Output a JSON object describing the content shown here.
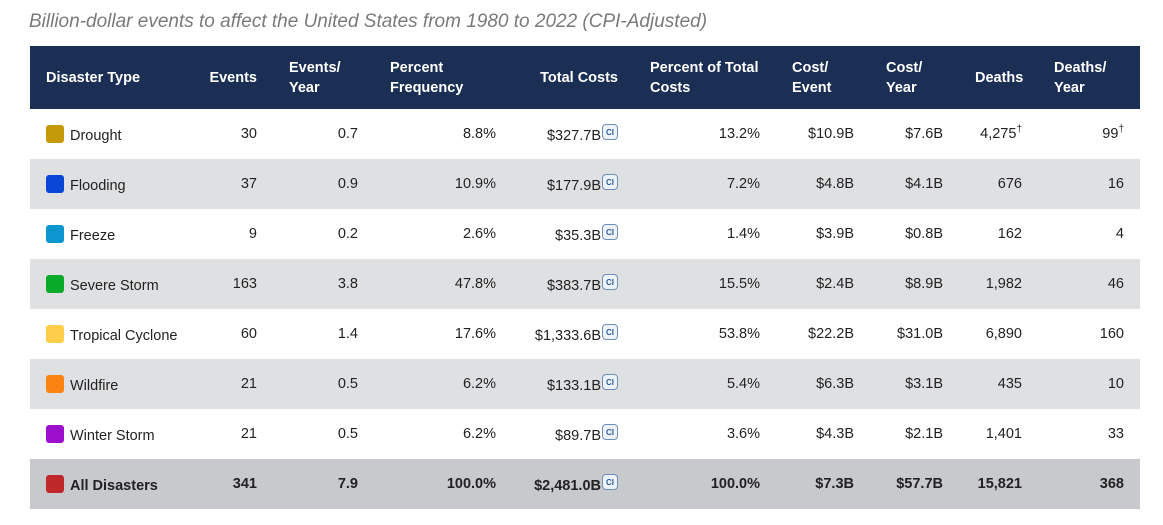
{
  "caption": "Billion-dollar events to affect the United States from 1980 to 2022 (CPI-Adjusted)",
  "ci_label": "CI",
  "dagger": "†",
  "columns": {
    "type": "Disaster Type",
    "events": "Events",
    "events_year": "Events/ Year",
    "percent_freq": "Percent Frequency",
    "total_costs": "Total Costs",
    "percent_costs": "Percent of Total Costs",
    "cost_event": "Cost/ Event",
    "cost_year": "Cost/ Year",
    "deaths": "Deaths",
    "deaths_year": "Deaths/ Year"
  },
  "rows": [
    {
      "type": "Drought",
      "color": "#c49a0b",
      "events": "30",
      "events_year": "0.7",
      "percent_freq": "8.8%",
      "total_costs": "$327.7B",
      "percent_costs": "13.2%",
      "cost_event": "$10.9B",
      "cost_year": "$7.6B",
      "deaths": "4,275",
      "deaths_year": "99"
    },
    {
      "type": "Flooding",
      "color": "#0a47d6",
      "events": "37",
      "events_year": "0.9",
      "percent_freq": "10.9%",
      "total_costs": "$177.9B",
      "percent_costs": "7.2%",
      "cost_event": "$4.8B",
      "cost_year": "$4.1B",
      "deaths": "676",
      "deaths_year": "16"
    },
    {
      "type": "Freeze",
      "color": "#0b96cf",
      "events": "9",
      "events_year": "0.2",
      "percent_freq": "2.6%",
      "total_costs": "$35.3B",
      "percent_costs": "1.4%",
      "cost_event": "$3.9B",
      "cost_year": "$0.8B",
      "deaths": "162",
      "deaths_year": "4"
    },
    {
      "type": "Severe Storm",
      "color": "#0aaa2a",
      "events": "163",
      "events_year": "3.8",
      "percent_freq": "47.8%",
      "total_costs": "$383.7B",
      "percent_costs": "15.5%",
      "cost_event": "$2.4B",
      "cost_year": "$8.9B",
      "deaths": "1,982",
      "deaths_year": "46"
    },
    {
      "type": "Tropical Cyclone",
      "color": "#fecd4a",
      "events": "60",
      "events_year": "1.4",
      "percent_freq": "17.6%",
      "total_costs": "$1,333.6B",
      "percent_costs": "53.8%",
      "cost_event": "$22.2B",
      "cost_year": "$31.0B",
      "deaths": "6,890",
      "deaths_year": "160"
    },
    {
      "type": "Wildfire",
      "color": "#fb8312",
      "events": "21",
      "events_year": "0.5",
      "percent_freq": "6.2%",
      "total_costs": "$133.1B",
      "percent_costs": "5.4%",
      "cost_event": "$6.3B",
      "cost_year": "$3.1B",
      "deaths": "435",
      "deaths_year": "10"
    },
    {
      "type": "Winter Storm",
      "color": "#9b0fcd",
      "events": "21",
      "events_year": "0.5",
      "percent_freq": "6.2%",
      "total_costs": "$89.7B",
      "percent_costs": "3.6%",
      "cost_event": "$4.3B",
      "cost_year": "$2.1B",
      "deaths": "1,401",
      "deaths_year": "33"
    }
  ],
  "total": {
    "type": "All Disasters",
    "color": "#c0292c",
    "events": "341",
    "events_year": "7.9",
    "percent_freq": "100.0%",
    "total_costs": "$2,481.0B",
    "percent_costs": "100.0%",
    "cost_event": "$7.3B",
    "cost_year": "$57.7B",
    "deaths": "15,821",
    "deaths_year": "368"
  },
  "colors": {
    "header_bg": "#1b2f54",
    "alt_row_bg": "#dfe0e2",
    "total_row_bg": "#c8c9cc"
  }
}
